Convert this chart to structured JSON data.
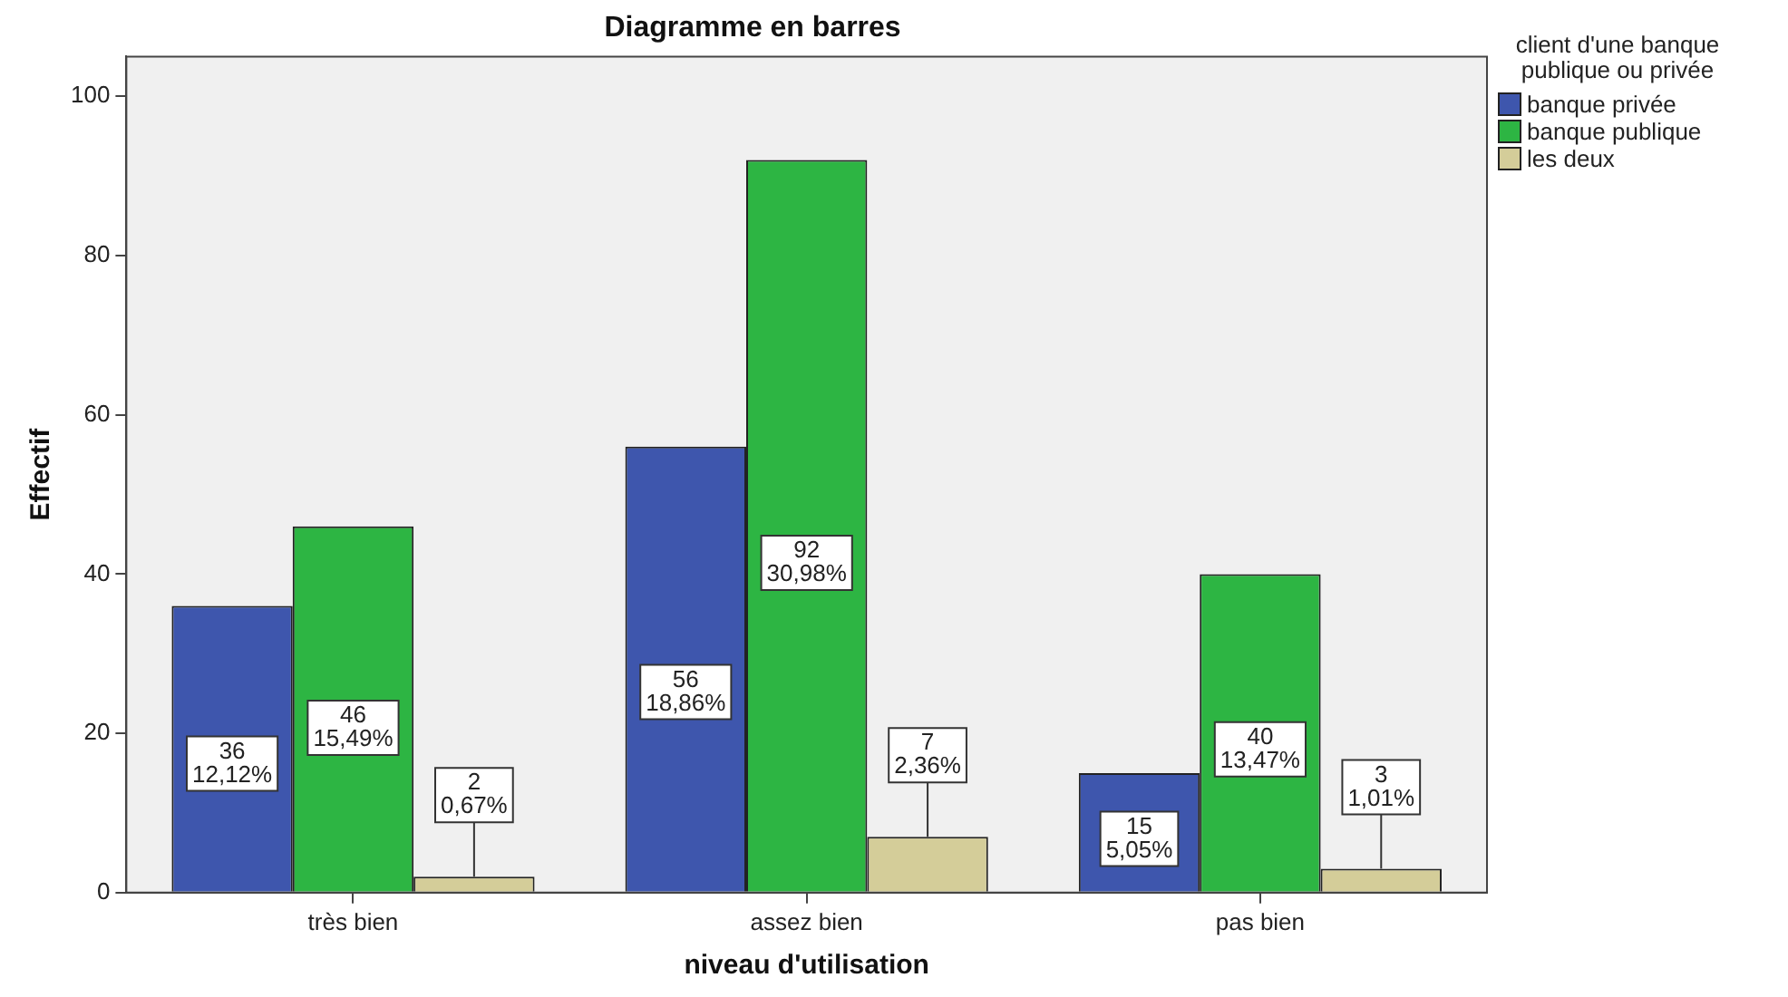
{
  "chart_data": {
    "type": "bar",
    "title": "Diagramme en barres",
    "xlabel": "niveau d'utilisation",
    "ylabel": "Effectif",
    "legend_title": "client d'une banque publique ou privée",
    "legend": "top right",
    "categories": [
      "très bien",
      "assez bien",
      "pas bien"
    ],
    "series": [
      {
        "name": "banque privée",
        "color": "#3e56ad",
        "values": [
          36,
          56,
          15
        ],
        "value_labels": [
          "36\n12,12%",
          "56\n18,86%",
          "15\n5,05%"
        ]
      },
      {
        "name": "banque publique",
        "color": "#2db543",
        "values": [
          46,
          92,
          40
        ],
        "value_labels": [
          "46\n15,49%",
          "92\n30,98%",
          "40\n13,47%"
        ]
      },
      {
        "name": "les deux",
        "color": "#d4cd99",
        "values": [
          2,
          7,
          3
        ],
        "value_labels": [
          "2\n0,67%",
          "7\n2,36%",
          "3\n1,01%"
        ]
      }
    ],
    "ylim": [
      0,
      105
    ],
    "yticks": [
      0,
      20,
      40,
      60,
      80,
      100
    ],
    "grid": false
  }
}
